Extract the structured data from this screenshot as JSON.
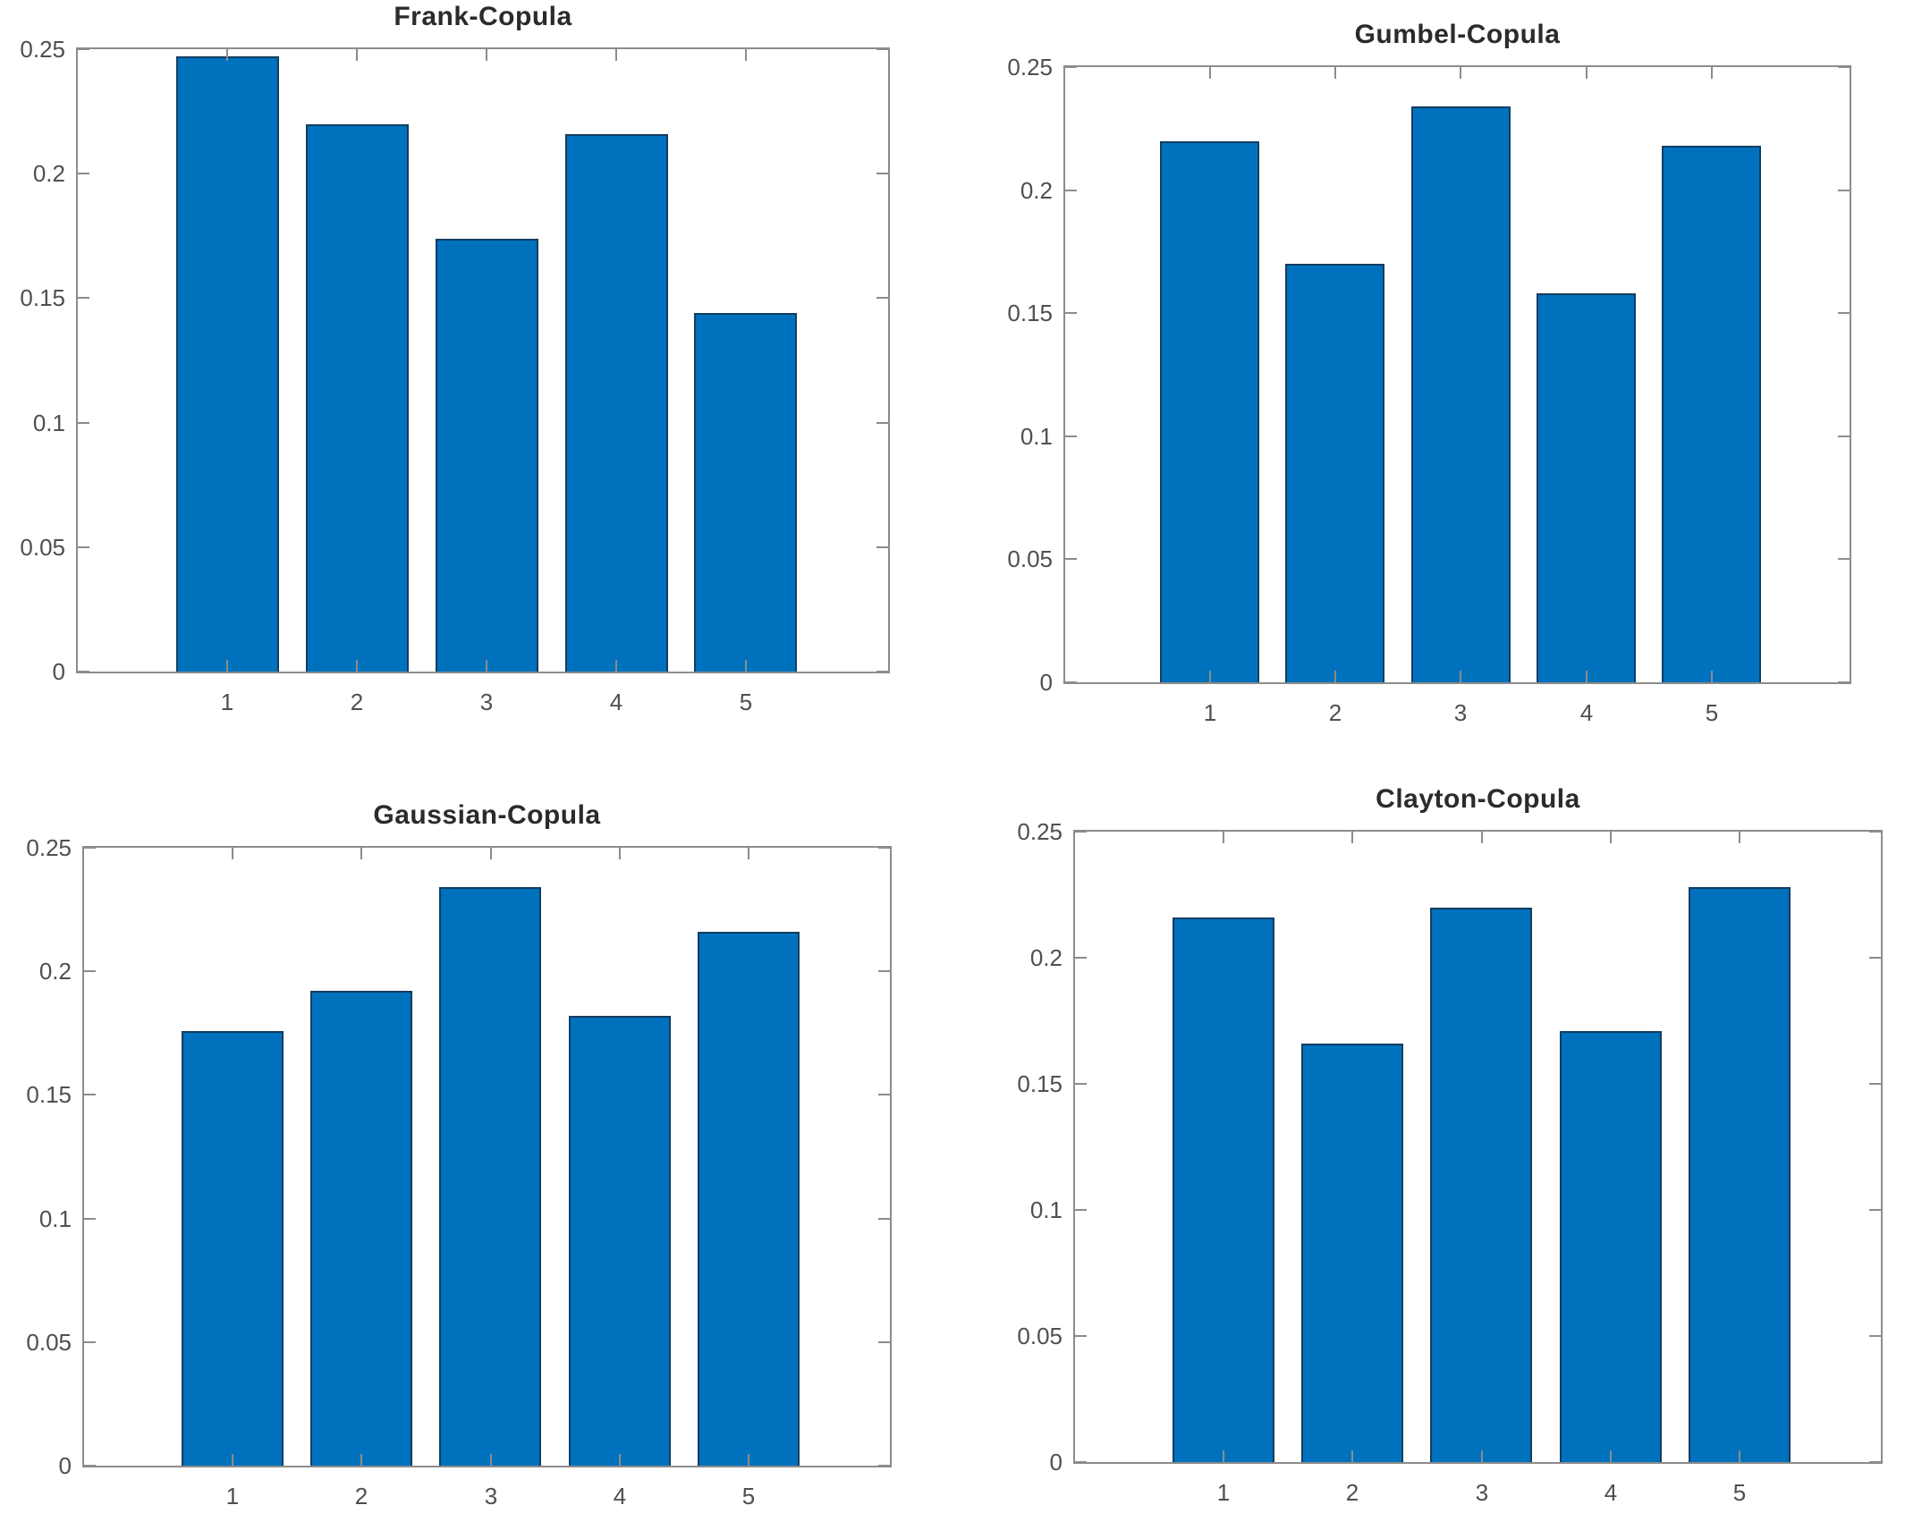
{
  "figure": {
    "background": "#FFFFFF",
    "grid_layout": "2x2"
  },
  "colors": {
    "bar_fill": "#0072BD",
    "bar_edge": "#143D61",
    "axis_line": "#8C8C8C",
    "tick_label": "#4F4F4F",
    "title": "#2B2B2B"
  },
  "chart_data": [
    {
      "type": "bar",
      "title": "Frank-Copula",
      "categories": [
        "1",
        "2",
        "3",
        "4",
        "5"
      ],
      "values": [
        0.247,
        0.22,
        0.174,
        0.216,
        0.144
      ],
      "xlabel": "",
      "ylabel": "",
      "ylim": [
        0,
        0.25
      ],
      "ytick_labels": [
        "0",
        "0.05",
        "0.1",
        "0.15",
        "0.2",
        "0.25"
      ],
      "grid": false,
      "legend": null,
      "box": true,
      "tick_direction": "in"
    },
    {
      "type": "bar",
      "title": "Gumbel-Copula",
      "categories": [
        "1",
        "2",
        "3",
        "4",
        "5"
      ],
      "values": [
        0.22,
        0.17,
        0.234,
        0.158,
        0.218
      ],
      "xlabel": "",
      "ylabel": "",
      "ylim": [
        0,
        0.25
      ],
      "ytick_labels": [
        "0",
        "0.05",
        "0.1",
        "0.15",
        "0.2",
        "0.25"
      ],
      "grid": false,
      "legend": null,
      "box": true,
      "tick_direction": "in"
    },
    {
      "type": "bar",
      "title": "Gaussian-Copula",
      "categories": [
        "1",
        "2",
        "3",
        "4",
        "5"
      ],
      "values": [
        0.176,
        0.192,
        0.234,
        0.182,
        0.216
      ],
      "xlabel": "",
      "ylabel": "",
      "ylim": [
        0,
        0.25
      ],
      "ytick_labels": [
        "0",
        "0.05",
        "0.1",
        "0.15",
        "0.2",
        "0.25"
      ],
      "grid": false,
      "legend": null,
      "box": true,
      "tick_direction": "in"
    },
    {
      "type": "bar",
      "title": "Clayton-Copula",
      "categories": [
        "1",
        "2",
        "3",
        "4",
        "5"
      ],
      "values": [
        0.216,
        0.166,
        0.22,
        0.171,
        0.228
      ],
      "xlabel": "",
      "ylabel": "",
      "ylim": [
        0,
        0.25
      ],
      "ytick_labels": [
        "0",
        "0.05",
        "0.1",
        "0.15",
        "0.2",
        "0.25"
      ],
      "grid": false,
      "legend": null,
      "box": true,
      "tick_direction": "in"
    }
  ]
}
